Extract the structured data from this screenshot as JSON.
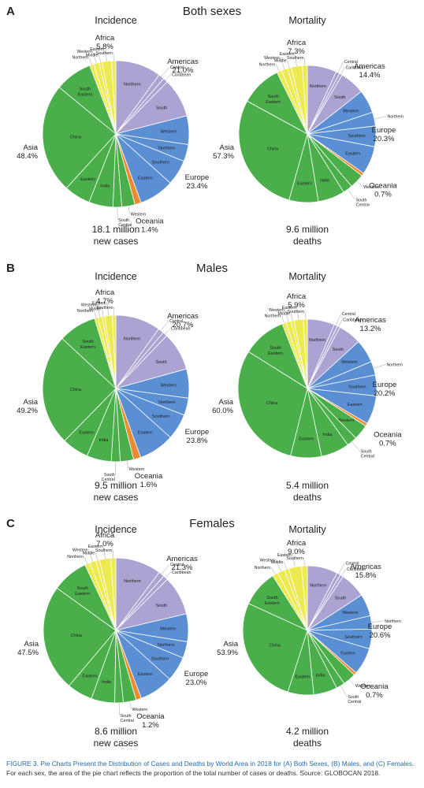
{
  "panels": [
    {
      "letter": "A",
      "title": "Both sexes"
    },
    {
      "letter": "B",
      "title": "Males"
    },
    {
      "letter": "C",
      "title": "Females"
    }
  ],
  "caption": {
    "title": "FIGURE 3. Pie Charts Present the Distribution of Cases and Deaths by World Area in 2018 for (A) Both Sexes, (B) Males, and (C) Females.",
    "body": "For each sex, the area of the pie chart reflects the proportion of the total number of cases or deaths. Source: GLOBOCAN 2018."
  },
  "colors": {
    "Africa": "#ece951",
    "Americas": "#aca3d3",
    "Europe": "#5a8fd3",
    "Oceania": "#eb8a2e",
    "Asia": "#4aae4a"
  },
  "chart_data": [
    {
      "type": "pie",
      "panel": "A",
      "title": "Incidence",
      "footer_value": "18.1 million",
      "footer_unit": "new cases",
      "regions": [
        {
          "name": "Americas",
          "percent": "21.0%",
          "value": 21.0,
          "subregions": [
            "Northern",
            "Central",
            "Caribbean",
            "South"
          ]
        },
        {
          "name": "Europe",
          "percent": "23.4%",
          "value": 23.4,
          "subregions": [
            "Western",
            "Northern",
            "Southern",
            "Eastern"
          ]
        },
        {
          "name": "Oceania",
          "percent": "1.4%",
          "value": 1.4,
          "subregions": []
        },
        {
          "name": "Asia",
          "percent": "48.4%",
          "value": 48.4,
          "subregions": [
            "Western",
            "South Central",
            "India",
            "Eastern",
            "China",
            "South Eastern"
          ]
        },
        {
          "name": "Africa",
          "percent": "5.8%",
          "value": 5.8,
          "subregions": [
            "Northern",
            "Western",
            "Middle",
            "Eastern",
            "Southern"
          ]
        }
      ]
    },
    {
      "type": "pie",
      "panel": "A",
      "title": "Mortality",
      "footer_value": "9.6 million",
      "footer_unit": "deaths",
      "regions": [
        {
          "name": "Americas",
          "percent": "14.4%",
          "value": 14.4,
          "subregions": [
            "Northern",
            "Central",
            "Caribbean",
            "South"
          ]
        },
        {
          "name": "Europe",
          "percent": "20.3%",
          "value": 20.3,
          "subregions": [
            "Western",
            "Northern",
            "Southern",
            "Eastern"
          ]
        },
        {
          "name": "Oceania",
          "percent": "0.7%",
          "value": 0.7,
          "subregions": []
        },
        {
          "name": "Asia",
          "percent": "57.3%",
          "value": 57.3,
          "subregions": [
            "Western",
            "South Central",
            "India",
            "Eastern",
            "China",
            "South Eastern"
          ]
        },
        {
          "name": "Africa",
          "percent": "7.3%",
          "value": 7.3,
          "subregions": [
            "Northern",
            "Western",
            "Middle",
            "Eastern",
            "Southern"
          ]
        }
      ]
    },
    {
      "type": "pie",
      "panel": "B",
      "title": "Incidence",
      "footer_value": "9.5 million",
      "footer_unit": "new cases",
      "regions": [
        {
          "name": "Americas",
          "percent": "20.7%",
          "value": 20.7,
          "subregions": [
            "Northern",
            "Central",
            "Caribbean",
            "South"
          ]
        },
        {
          "name": "Europe",
          "percent": "23.8%",
          "value": 23.8,
          "subregions": [
            "Western",
            "Northern",
            "Southern",
            "Eastern"
          ]
        },
        {
          "name": "Oceania",
          "percent": "1.6%",
          "value": 1.6,
          "subregions": []
        },
        {
          "name": "Asia",
          "percent": "49.2%",
          "value": 49.2,
          "subregions": [
            "Western",
            "South Central",
            "India",
            "Eastern",
            "China",
            "South Eastern"
          ]
        },
        {
          "name": "Africa",
          "percent": "4.7%",
          "value": 4.7,
          "subregions": [
            "Northern",
            "Western",
            "Middle",
            "Eastern",
            "Southern"
          ]
        }
      ]
    },
    {
      "type": "pie",
      "panel": "B",
      "title": "Mortality",
      "footer_value": "5.4 million",
      "footer_unit": "deaths",
      "regions": [
        {
          "name": "Americas",
          "percent": "13.2%",
          "value": 13.2,
          "subregions": [
            "Northern",
            "Central",
            "Caribbean",
            "South"
          ]
        },
        {
          "name": "Europe",
          "percent": "20.2%",
          "value": 20.2,
          "subregions": [
            "Western",
            "Northern",
            "Southern",
            "Eastern"
          ]
        },
        {
          "name": "Oceania",
          "percent": "0.7%",
          "value": 0.7,
          "subregions": []
        },
        {
          "name": "Asia",
          "percent": "60.0%",
          "value": 60.0,
          "subregions": [
            "Western",
            "South Central",
            "India",
            "Eastern",
            "China",
            "South Eastern"
          ]
        },
        {
          "name": "Africa",
          "percent": "5.9%",
          "value": 5.9,
          "subregions": [
            "Northern",
            "Western",
            "Middle",
            "Eastern",
            "Southern"
          ]
        }
      ]
    },
    {
      "type": "pie",
      "panel": "C",
      "title": "Incidence",
      "footer_value": "8.6 million",
      "footer_unit": "new cases",
      "regions": [
        {
          "name": "Americas",
          "percent": "21.3%",
          "value": 21.3,
          "subregions": [
            "Northern",
            "Central",
            "Caribbean",
            "South"
          ]
        },
        {
          "name": "Europe",
          "percent": "23.0%",
          "value": 23.0,
          "subregions": [
            "Western",
            "Northern",
            "Southern",
            "Eastern"
          ]
        },
        {
          "name": "Oceania",
          "percent": "1.2%",
          "value": 1.2,
          "subregions": []
        },
        {
          "name": "Asia",
          "percent": "47.5%",
          "value": 47.5,
          "subregions": [
            "Western",
            "South Central",
            "India",
            "Eastern",
            "China",
            "South Eastern"
          ]
        },
        {
          "name": "Africa",
          "percent": "7.0%",
          "value": 7.0,
          "subregions": [
            "Northern",
            "Western",
            "Middle",
            "Eastern",
            "Southern"
          ]
        }
      ]
    },
    {
      "type": "pie",
      "panel": "C",
      "title": "Mortality",
      "footer_value": "4.2 million",
      "footer_unit": "deaths",
      "regions": [
        {
          "name": "Americas",
          "percent": "15.8%",
          "value": 15.8,
          "subregions": [
            "Northern",
            "Central",
            "Caribbean",
            "South"
          ]
        },
        {
          "name": "Europe",
          "percent": "20.6%",
          "value": 20.6,
          "subregions": [
            "Western",
            "Northern",
            "Southern",
            "Eastern"
          ]
        },
        {
          "name": "Oceania",
          "percent": "0.7%",
          "value": 0.7,
          "subregions": []
        },
        {
          "name": "Asia",
          "percent": "53.9%",
          "value": 53.9,
          "subregions": [
            "Western",
            "South Central",
            "India",
            "Eastern",
            "China",
            "South Eastern"
          ]
        },
        {
          "name": "Africa",
          "percent": "9.0%",
          "value": 9.0,
          "subregions": [
            "Northern",
            "Western",
            "Middle",
            "Eastern",
            "Southern"
          ]
        }
      ]
    }
  ]
}
